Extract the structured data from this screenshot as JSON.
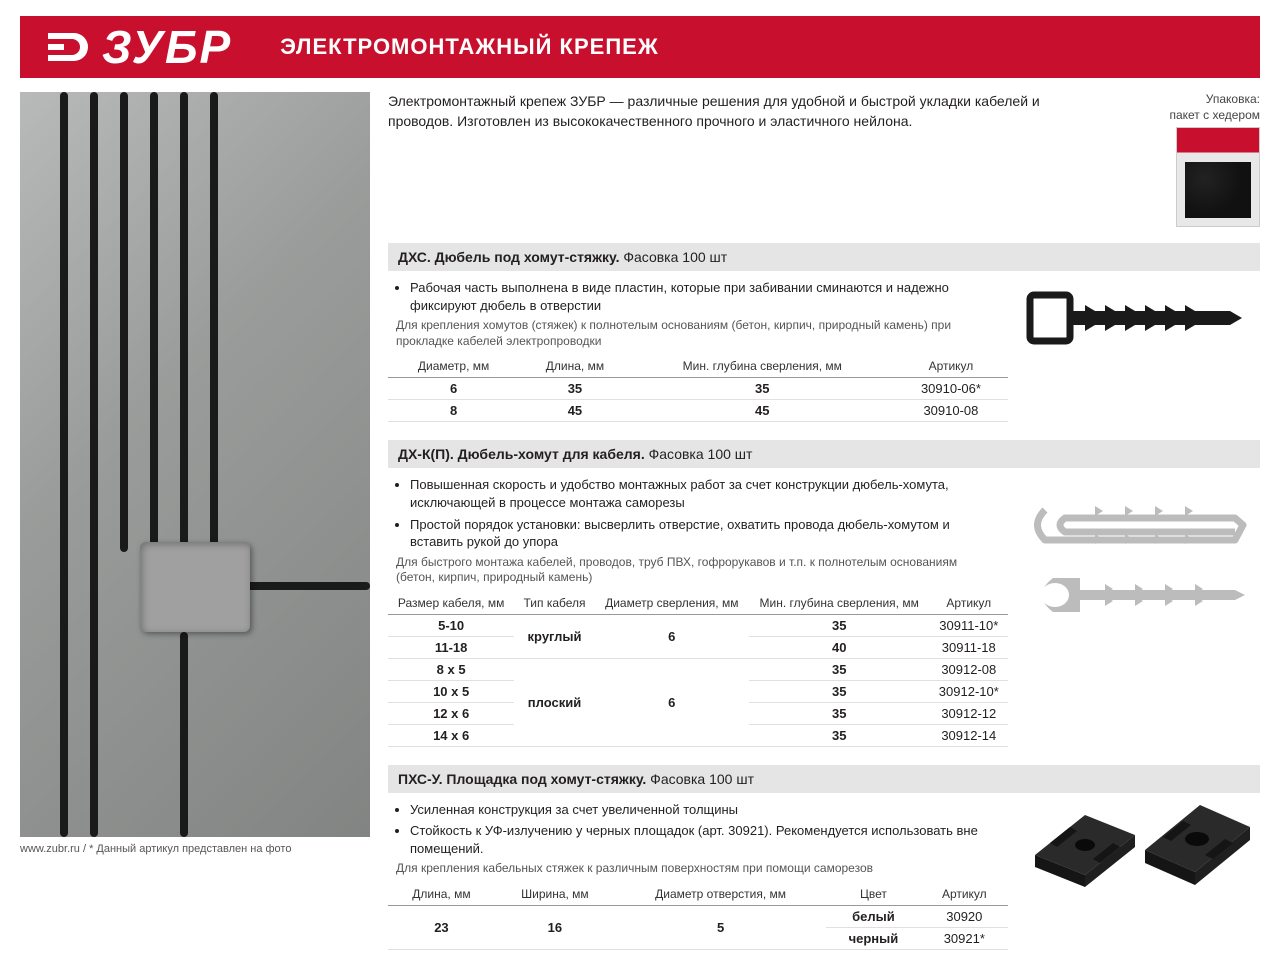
{
  "brand": "ЗУБР",
  "header_title": "ЭЛЕКТРОМОНТАЖНЫЙ КРЕПЕЖ",
  "intro": "Электромонтажный крепеж ЗУБР — различные решения для удобной и быстрой укладки кабелей и проводов. Изготовлен из высококачественного прочного и эластичного нейлона.",
  "packaging_label": "Упаковка:\nпакет с хедером",
  "footer": "www.zubr.ru   /   * Данный артикул представлен на фото",
  "colors": {
    "brand_red": "#c8102e",
    "section_bg": "#e5e5e5",
    "text": "#231f20",
    "rule": "#999999"
  },
  "section1": {
    "title_bold": "ДХС. Дюбель под хомут-стяжку.",
    "title_rest": " Фасовка 100 шт",
    "bullets": [
      "Рабочая часть выполнена в виде пластин, которые при забивании сминаются и надежно фиксируют дюбель в отверстии"
    ],
    "note": "Для крепления хомутов (стяжек) к полнотелым основаниям (бетон, кирпич, природный камень) при прокладке кабелей электропроводки",
    "columns": [
      "Диаметр, мм",
      "Длина, мм",
      "Мин. глубина сверления, мм",
      "Артикул"
    ],
    "rows": [
      [
        "6",
        "35",
        "35",
        "30910-06*"
      ],
      [
        "8",
        "45",
        "45",
        "30910-08"
      ]
    ]
  },
  "section2": {
    "title_bold": "ДХ-К(П). Дюбель-хомут для кабеля.",
    "title_rest": " Фасовка 100 шт",
    "bullets": [
      "Повышенная скорость и удобство монтажных работ за счет конструкции дюбель-хомута, исключающей в процессе монтажа саморезы",
      "Простой порядок установки: высверлить отверстие, охватить провода дюбель-хомутом и вставить рукой до упора"
    ],
    "note": "Для быстрого монтажа кабелей, проводов, труб ПВХ, гофрорукавов и т.п. к полнотелым основаниям (бетон, кирпич, природный камень)",
    "columns": [
      "Размер кабеля, мм",
      "Тип кабеля",
      "Диаметр сверления, мм",
      "Мин. глубина сверления, мм",
      "Артикул"
    ],
    "rows": [
      {
        "size": "5-10",
        "type": "круглый",
        "type_rowspan": 2,
        "drill": "6",
        "drill_rowspan": 2,
        "depth": "35",
        "sku": "30911-10*"
      },
      {
        "size": "11-18",
        "depth": "40",
        "sku": "30911-18"
      },
      {
        "size": "8 х 5",
        "type": "плоский",
        "type_rowspan": 4,
        "drill": "6",
        "drill_rowspan": 4,
        "depth": "35",
        "sku": "30912-08"
      },
      {
        "size": "10 х 5",
        "depth": "35",
        "sku": "30912-10*"
      },
      {
        "size": "12 х 6",
        "depth": "35",
        "sku": "30912-12"
      },
      {
        "size": "14 х 6",
        "depth": "35",
        "sku": "30912-14"
      }
    ]
  },
  "section3": {
    "title_bold": "ПХС-У. Площадка под хомут-стяжку.",
    "title_rest": " Фасовка 100 шт",
    "bullets": [
      "Усиленная конструкция за счет увеличенной толщины",
      "Стойкость к УФ-излучению у черных площадок (арт. 30921). Рекомендуется использовать вне помещений."
    ],
    "note": "Для крепления кабельных стяжек к различным поверхностям при помощи саморезов",
    "columns": [
      "Длина, мм",
      "Ширина, мм",
      "Диаметр отверстия, мм",
      "Цвет",
      "Артикул"
    ],
    "rows": [
      {
        "len": "23",
        "len_rowspan": 2,
        "width": "16",
        "width_rowspan": 2,
        "hole": "5",
        "hole_rowspan": 2,
        "color": "белый",
        "sku": "30920"
      },
      {
        "color": "черный",
        "sku": "30921*"
      }
    ]
  }
}
